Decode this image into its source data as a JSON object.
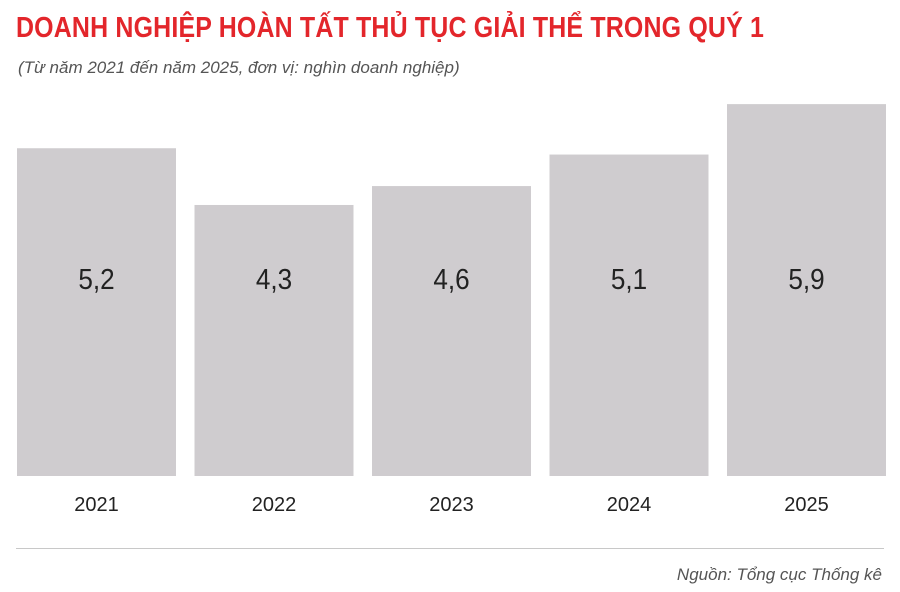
{
  "header": {
    "title": "DOANH NGHIỆP HOÀN TẤT THỦ TỤC GIẢI THỂ TRONG QUÝ 1",
    "subtitle": "(Từ năm 2021 đến năm 2025, đơn vị: nghìn doanh nghiệp)"
  },
  "footer": {
    "source": "Nguồn: Tổng cục Thống kê"
  },
  "colors": {
    "title": "#e3262b",
    "bar": "#cfcccf",
    "value_text": "#222222",
    "tick_text": "#222222"
  },
  "chart_data": {
    "type": "bar",
    "categories": [
      "2021",
      "2022",
      "2023",
      "2024",
      "2025"
    ],
    "values": [
      5.2,
      4.3,
      4.6,
      5.1,
      5.9
    ],
    "value_labels": [
      "5,2",
      "4,3",
      "4,6",
      "5,1",
      "5,9"
    ],
    "title": "DOANH NGHIỆP HOÀN TẤT THỦ TỤC GIẢI THỂ TRONG QUÝ 1",
    "subtitle": "(Từ năm 2021 đến năm 2025, đơn vị: nghìn doanh nghiệp)",
    "xlabel": "",
    "ylabel": "",
    "ylim": [
      0,
      6.6
    ],
    "grid": false,
    "legend": "none"
  }
}
